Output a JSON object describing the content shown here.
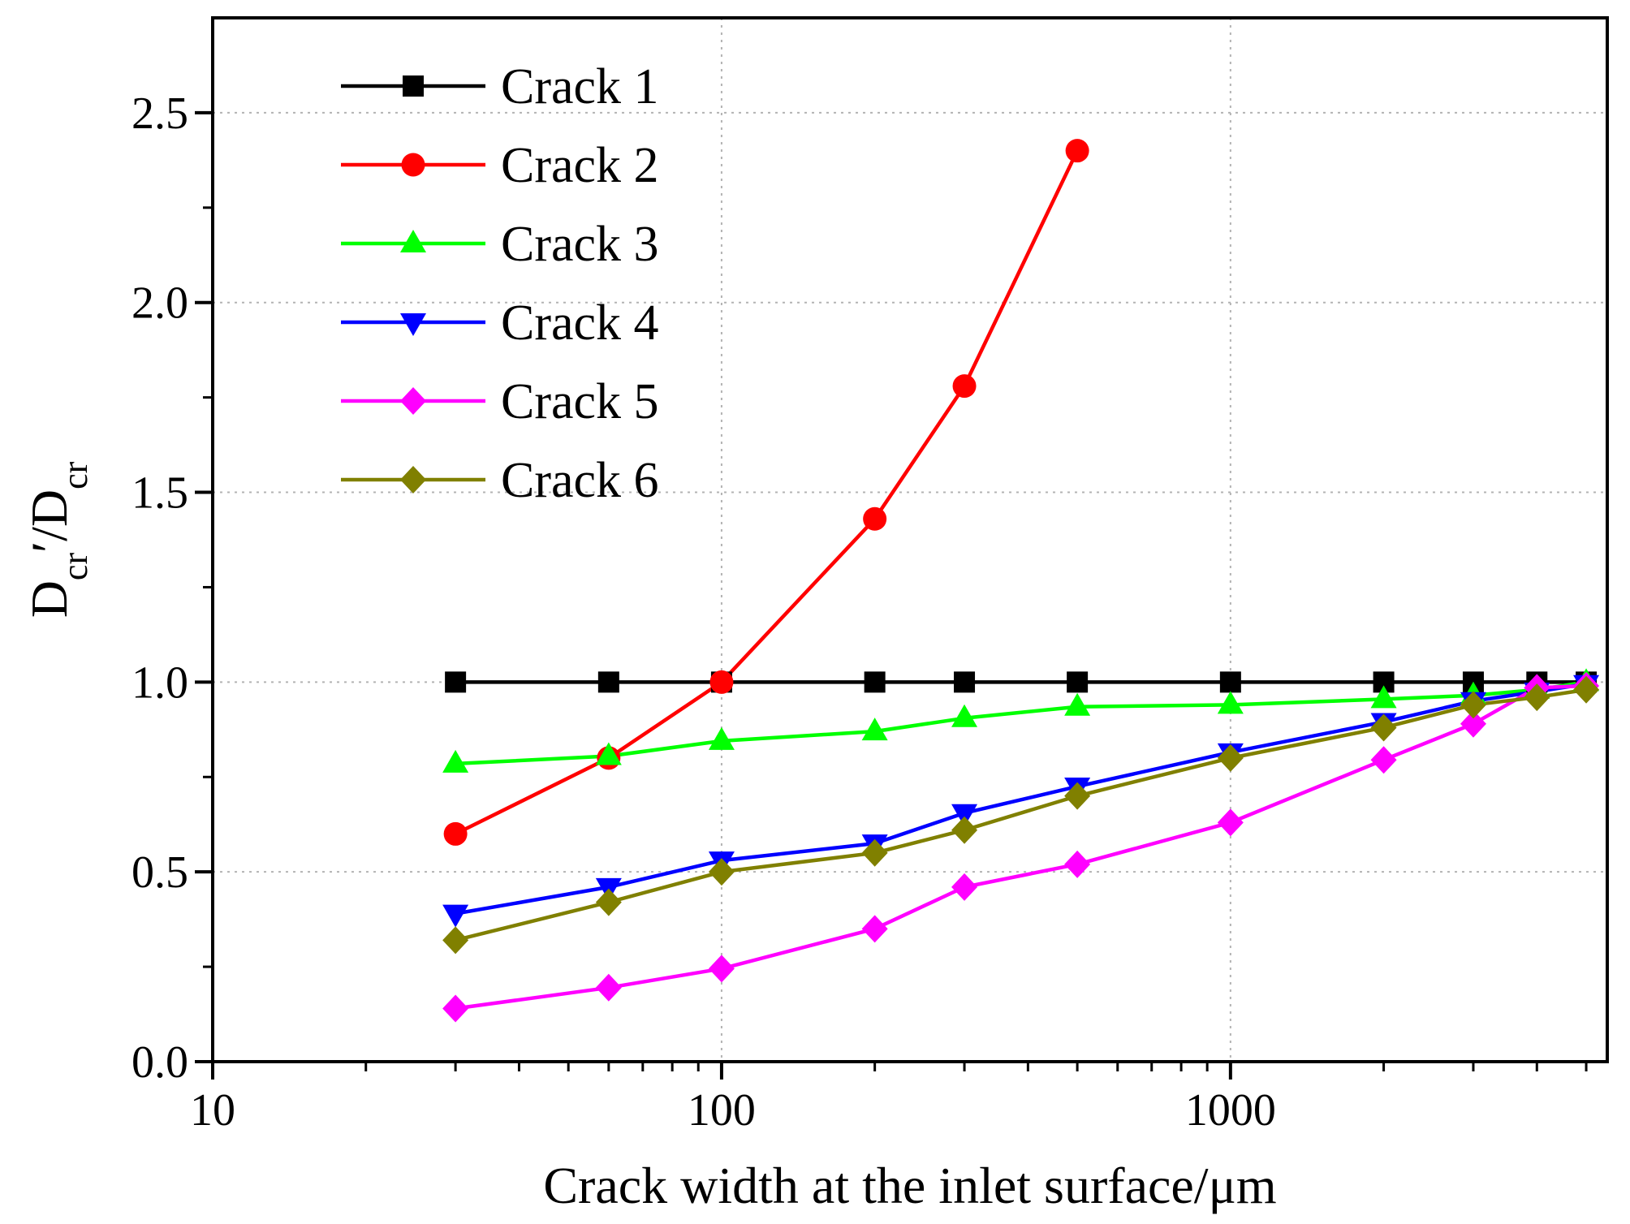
{
  "chart_data": {
    "type": "line",
    "xscale": "log",
    "xlim": [
      10,
      5500
    ],
    "ylim": [
      0,
      2.75
    ],
    "xticks": [
      10,
      100,
      1000
    ],
    "xtick_labels": [
      "10",
      "100",
      "1000"
    ],
    "yticks": [
      0,
      0.5,
      1.0,
      1.5,
      2.0,
      2.5
    ],
    "ytick_labels": [
      "0.0",
      "0.5",
      "1.0",
      "1.5",
      "2.0",
      "2.5"
    ],
    "xlabel": "Crack width at the inlet surface/μm",
    "ylabel": {
      "main1": "D",
      "sub1": "cr",
      "prime": "′/D",
      "sub2": "cr"
    },
    "grid": true,
    "legend_position": "top-left",
    "series": [
      {
        "name": "Crack 1",
        "color": "#000000",
        "marker": "square",
        "x": [
          30,
          60,
          100,
          200,
          300,
          500,
          1000,
          2000,
          3000,
          4000,
          5000
        ],
        "y": [
          1.0,
          1.0,
          1.0,
          1.0,
          1.0,
          1.0,
          1.0,
          1.0,
          1.0,
          1.0,
          1.0
        ]
      },
      {
        "name": "Crack 2",
        "color": "#ff0000",
        "marker": "circle",
        "x": [
          30,
          60,
          100,
          200,
          300,
          500
        ],
        "y": [
          0.6,
          0.8,
          1.0,
          1.43,
          1.78,
          2.4
        ]
      },
      {
        "name": "Crack 3",
        "color": "#00ff00",
        "marker": "triangle-up",
        "x": [
          30,
          60,
          100,
          200,
          300,
          500,
          1000,
          2000,
          3000,
          4000,
          5000
        ],
        "y": [
          0.785,
          0.805,
          0.845,
          0.87,
          0.905,
          0.935,
          0.94,
          0.955,
          0.965,
          0.98,
          1.0
        ]
      },
      {
        "name": "Crack 4",
        "color": "#0000ff",
        "marker": "triangle-down",
        "x": [
          30,
          60,
          100,
          200,
          300,
          500,
          1000,
          2000,
          3000,
          4000,
          5000
        ],
        "y": [
          0.39,
          0.46,
          0.53,
          0.575,
          0.655,
          0.725,
          0.815,
          0.895,
          0.95,
          0.975,
          0.995
        ]
      },
      {
        "name": "Crack 5",
        "color": "#ff00ff",
        "marker": "diamond",
        "x": [
          30,
          60,
          100,
          200,
          300,
          500,
          1000,
          2000,
          3000,
          4000,
          5000
        ],
        "y": [
          0.14,
          0.195,
          0.245,
          0.35,
          0.46,
          0.52,
          0.63,
          0.795,
          0.89,
          0.985,
          0.99
        ]
      },
      {
        "name": "Crack 6",
        "color": "#808000",
        "marker": "diamond",
        "x": [
          30,
          60,
          100,
          200,
          300,
          500,
          1000,
          2000,
          3000,
          4000,
          5000
        ],
        "y": [
          0.32,
          0.42,
          0.5,
          0.55,
          0.61,
          0.7,
          0.8,
          0.88,
          0.94,
          0.96,
          0.98
        ]
      }
    ]
  }
}
